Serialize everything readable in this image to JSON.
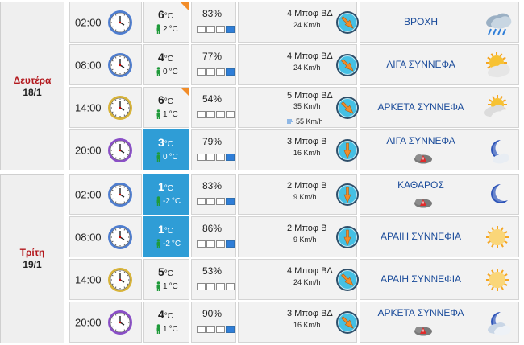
{
  "days": [
    {
      "name": "Δευτέρα",
      "date": "18/1",
      "rows": [
        {
          "time": "02:00",
          "clock_color": "#4f7ed0",
          "temp": "6",
          "feels": "2",
          "temp_highlight": false,
          "corner": true,
          "humidity": "83%",
          "humidity_level": 0.9,
          "wind_speed": "4 Μποφ ΒΔ",
          "wind_kmh": "24 Km/h",
          "gust": "",
          "wind_scale": 2,
          "sky": "ΒΡΟΧΗ",
          "sky_icon": "rain-icon",
          "dust": false
        },
        {
          "time": "08:00",
          "clock_color": "#4f7ed0",
          "temp": "4",
          "feels": "0",
          "temp_highlight": false,
          "corner": false,
          "humidity": "77%",
          "humidity_level": 0.8,
          "wind_speed": "4 Μποφ ΒΔ",
          "wind_kmh": "24 Km/h",
          "gust": "",
          "wind_scale": 2,
          "sky": "ΛΙΓΑ ΣΥΝΝΕΦΑ",
          "sky_icon": "sun-cloud-icon",
          "dust": false
        },
        {
          "time": "14:00",
          "clock_color": "#d8b43a",
          "temp": "6",
          "feels": "1",
          "temp_highlight": false,
          "corner": true,
          "humidity": "54%",
          "humidity_level": 0.55,
          "wind_speed": "5 Μποφ ΒΔ",
          "wind_kmh": "35 Km/h",
          "gust": "55 Km/h",
          "wind_scale": 3,
          "sky": "ΑΡΚΕΤΑ ΣΥΝΝΕΦΑ",
          "sky_icon": "sun-clouds-icon",
          "dust": false
        },
        {
          "time": "20:00",
          "clock_color": "#8a4fc7",
          "temp": "3",
          "feels": "0",
          "temp_highlight": true,
          "corner": false,
          "humidity": "79%",
          "humidity_level": 0.8,
          "wind_speed": "3 Μποφ Β",
          "wind_kmh": "16 Km/h",
          "gust": "",
          "wind_scale": 2,
          "sky": "ΛΙΓΑ ΣΥΝΝΕΦΑ",
          "sky_icon": "moon-cloud-icon",
          "dust": true
        }
      ]
    },
    {
      "name": "Τρίτη",
      "date": "19/1",
      "rows": [
        {
          "time": "02:00",
          "clock_color": "#4f7ed0",
          "temp": "1",
          "feels": "-2",
          "temp_highlight": true,
          "corner": false,
          "humidity": "83%",
          "humidity_level": 0.9,
          "wind_speed": "2 Μποφ Β",
          "wind_kmh": "9 Km/h",
          "gust": "",
          "wind_scale": 1,
          "sky": "ΚΑΘΑΡΟΣ",
          "sky_icon": "moon-icon",
          "dust": true
        },
        {
          "time": "08:00",
          "clock_color": "#4f7ed0",
          "temp": "1",
          "feels": "-2",
          "temp_highlight": true,
          "corner": false,
          "humidity": "86%",
          "humidity_level": 0.9,
          "wind_speed": "2 Μποφ Β",
          "wind_kmh": "9 Km/h",
          "gust": "",
          "wind_scale": 1,
          "sky": "ΑΡΑΙΗ ΣΥΝΝΕΦΙΑ",
          "sky_icon": "hazy-sun-icon",
          "dust": false
        },
        {
          "time": "14:00",
          "clock_color": "#d8b43a",
          "temp": "5",
          "feels": "1",
          "temp_highlight": false,
          "corner": false,
          "humidity": "53%",
          "humidity_level": 0.55,
          "wind_speed": "4 Μποφ ΒΔ",
          "wind_kmh": "24 Km/h",
          "gust": "",
          "wind_scale": 2,
          "sky": "ΑΡΑΙΗ ΣΥΝΝΕΦΙΑ",
          "sky_icon": "hazy-sun-icon",
          "dust": false
        },
        {
          "time": "20:00",
          "clock_color": "#8a4fc7",
          "temp": "4",
          "feels": "1",
          "temp_highlight": false,
          "corner": false,
          "humidity": "90%",
          "humidity_level": 0.95,
          "wind_speed": "3 Μποφ ΒΔ",
          "wind_kmh": "16 Km/h",
          "gust": "",
          "wind_scale": 2,
          "sky": "ΑΡΚΕΤΑ ΣΥΝΝΕΦΑ",
          "sky_icon": "moon-clouds-icon",
          "dust": true
        }
      ]
    }
  ],
  "units": {
    "celsius": "°C"
  }
}
